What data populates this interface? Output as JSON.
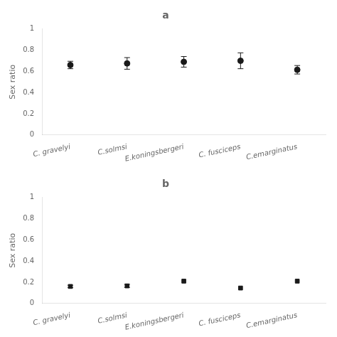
{
  "chart_data": [
    {
      "type": "scatter",
      "title": "a",
      "categories": [
        "C. gravelyi",
        "C.solmsi",
        "E.koningsbergeri",
        "C. fusciceps",
        "C.emarginatus"
      ],
      "values": [
        0.66,
        0.675,
        0.69,
        0.7,
        0.615
      ],
      "errors": [
        0.035,
        0.055,
        0.05,
        0.075,
        0.04
      ],
      "ylabel": "Sex ratio",
      "ylim": [
        0,
        1
      ],
      "yticks": [
        0,
        0.2,
        0.4,
        0.6,
        0.8,
        1
      ],
      "marker": "circle",
      "color": "#1a1a1a",
      "grid": false
    },
    {
      "type": "scatter",
      "title": "b",
      "categories": [
        "C. gravelyi",
        "C.solmsi",
        "E.koningsbergeri",
        "C. fusciceps",
        "C.emarginatus"
      ],
      "values": [
        0.16,
        0.165,
        0.21,
        0.145,
        0.21
      ],
      "errors": [
        0.012,
        0.015,
        0.0,
        0.0,
        0.0
      ],
      "ylabel": "Sex ratio",
      "ylim": [
        0,
        1
      ],
      "yticks": [
        0,
        0.2,
        0.4,
        0.6,
        0.8,
        1
      ],
      "marker": "square",
      "color": "#1a1a1a",
      "grid": false
    }
  ]
}
